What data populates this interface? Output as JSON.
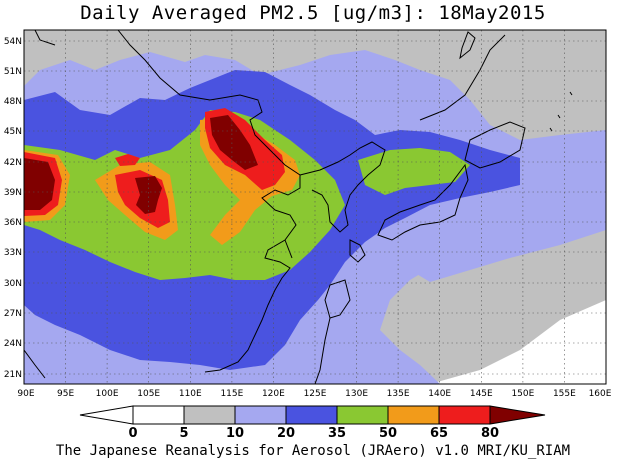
{
  "title": "Daily Averaged PM2.5 [ug/m3]: 18May2015",
  "footer": "The Japanese Reanalysis for Aerosol (JRAero) v1.0 MRI/KU_RIAM",
  "map": {
    "lon_range": [
      90,
      160
    ],
    "lat_range": [
      20,
      55
    ],
    "lon_ticks": [
      "90E",
      "95E",
      "100E",
      "105E",
      "110E",
      "115E",
      "120E",
      "125E",
      "130E",
      "135E",
      "140E",
      "145E",
      "150E",
      "155E",
      "160E"
    ],
    "lat_ticks": [
      "54N",
      "51N",
      "48N",
      "45N",
      "42N",
      "39N",
      "36N",
      "33N",
      "30N",
      "27N",
      "24N",
      "21N"
    ],
    "gridlines": true
  },
  "colorbar": {
    "labels": [
      "0",
      "5",
      "10",
      "20",
      "35",
      "50",
      "65",
      "80"
    ],
    "colors": [
      "#ffffff",
      "#c0c0c0",
      "#a5a8f0",
      "#4a53e0",
      "#8ac832",
      "#f29b1a",
      "#ee1d1d",
      "#800000"
    ]
  }
}
